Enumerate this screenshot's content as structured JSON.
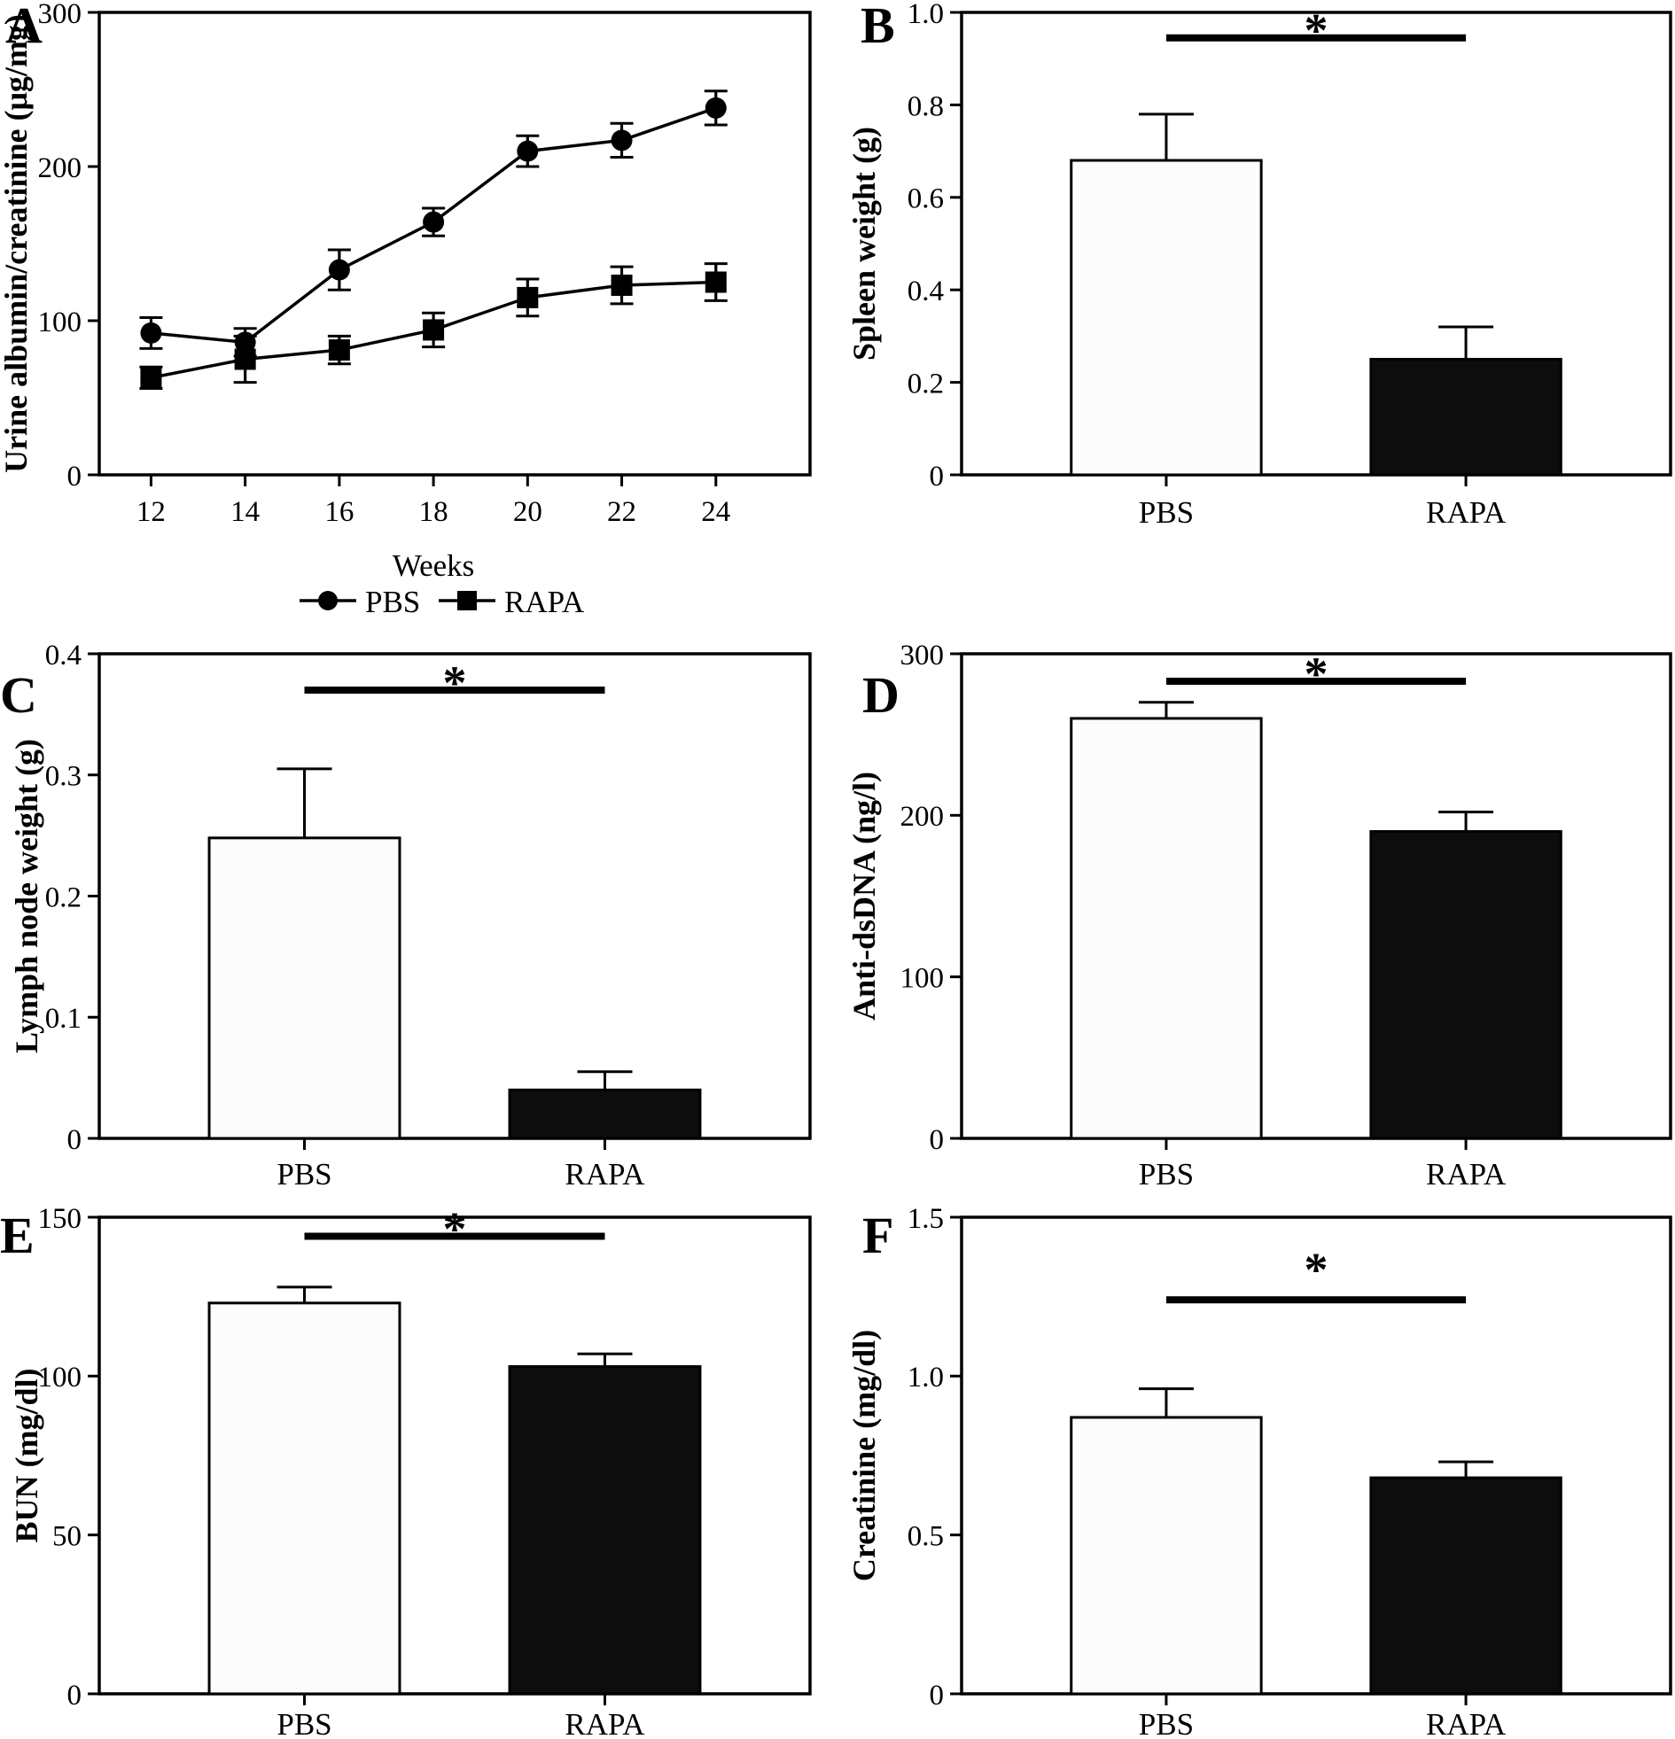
{
  "figure": {
    "groups": [
      "PBS",
      "RAPA"
    ],
    "significance_symbol": "*",
    "colors": {
      "ink": "#000000",
      "pbs_bar_fill": "#fcfcfc",
      "rapa_bar_fill": "#0d0d0d",
      "background": "#ffffff"
    }
  },
  "chart_data": [
    {
      "panel": "A",
      "type": "line",
      "title": "",
      "xlabel": "Weeks",
      "ylabel": "Urine albumin/creatinine (μg/mg)",
      "ylim": [
        0,
        300
      ],
      "yticks": [
        0,
        100,
        200,
        300
      ],
      "ytick_labels": [
        "0",
        "100",
        "200",
        "300"
      ],
      "xlim": [
        10.9,
        26.0
      ],
      "x": [
        12,
        14,
        16,
        18,
        20,
        22,
        24
      ],
      "xtick_labels": [
        "12",
        "14",
        "16",
        "18",
        "20",
        "22",
        "24"
      ],
      "grid": false,
      "legend_position": "bottom",
      "series": [
        {
          "name": "PBS",
          "marker": "circle",
          "color": "#000000",
          "values": [
            92,
            86,
            133,
            164,
            210,
            217,
            238
          ],
          "errors": [
            10,
            9,
            13,
            9,
            10,
            11,
            11
          ]
        },
        {
          "name": "RAPA",
          "marker": "square",
          "color": "#000000",
          "values": [
            63,
            75,
            81,
            94,
            115,
            123,
            125
          ],
          "errors": [
            7,
            15,
            9,
            11,
            12,
            12,
            12
          ]
        }
      ],
      "legend": [
        {
          "label": "PBS",
          "marker": "circle"
        },
        {
          "label": "RAPA",
          "marker": "square"
        }
      ]
    },
    {
      "panel": "B",
      "type": "bar",
      "ylabel": "Spleen weight (g)",
      "ylim": [
        0,
        1.0
      ],
      "yticks": [
        0,
        0.2,
        0.4,
        0.6,
        0.8,
        1.0
      ],
      "ytick_labels": [
        "0",
        "0.2",
        "0.4",
        "0.6",
        "0.8",
        "1.0"
      ],
      "categories": [
        "PBS",
        "RAPA"
      ],
      "values": [
        0.68,
        0.25
      ],
      "errors": [
        0.1,
        0.07
      ],
      "colors": [
        "#fcfcfc",
        "#0d0d0d"
      ],
      "significance": {
        "label": "*",
        "y": 0.945
      }
    },
    {
      "panel": "C",
      "type": "bar",
      "ylabel": "Lymph node weight (g)",
      "ylim": [
        0,
        0.4
      ],
      "yticks": [
        0,
        0.1,
        0.2,
        0.3,
        0.4
      ],
      "ytick_labels": [
        "0",
        "0.1",
        "0.2",
        "0.3",
        "0.4"
      ],
      "categories": [
        "PBS",
        "RAPA"
      ],
      "values": [
        0.248,
        0.04
      ],
      "errors": [
        0.057,
        0.015
      ],
      "colors": [
        "#fcfcfc",
        "#0d0d0d"
      ],
      "significance": {
        "label": "*",
        "y": 0.37
      }
    },
    {
      "panel": "D",
      "type": "bar",
      "ylabel": "Anti-dsDNA (ng/l)",
      "ylim": [
        0,
        300
      ],
      "yticks": [
        0,
        100,
        200,
        300
      ],
      "ytick_labels": [
        "0",
        "100",
        "200",
        "300"
      ],
      "categories": [
        "PBS",
        "RAPA"
      ],
      "values": [
        260,
        190
      ],
      "errors": [
        10,
        12
      ],
      "colors": [
        "#fcfcfc",
        "#0d0d0d"
      ],
      "significance": {
        "label": "*",
        "y": 283
      }
    },
    {
      "panel": "E",
      "type": "bar",
      "ylabel": "BUN (mg/dl)",
      "ylim": [
        0,
        150
      ],
      "yticks": [
        0,
        50,
        100,
        150
      ],
      "ytick_labels": [
        "0",
        "50",
        "100",
        "150"
      ],
      "categories": [
        "PBS",
        "RAPA"
      ],
      "values": [
        123,
        103
      ],
      "errors": [
        5,
        4
      ],
      "colors": [
        "#fcfcfc",
        "#0d0d0d"
      ],
      "significance": {
        "label": "*",
        "y": 144
      }
    },
    {
      "panel": "F",
      "type": "bar",
      "ylabel": "Creatinine (mg/dl)",
      "ylim": [
        0,
        1.5
      ],
      "yticks": [
        0,
        0.5,
        1.0,
        1.5
      ],
      "ytick_labels": [
        "0",
        "0.5",
        "1.0",
        "1.5"
      ],
      "categories": [
        "PBS",
        "RAPA"
      ],
      "values": [
        0.87,
        0.68
      ],
      "errors": [
        0.09,
        0.05
      ],
      "colors": [
        "#fcfcfc",
        "#0d0d0d"
      ],
      "significance": {
        "label": "*",
        "y": 1.24
      }
    }
  ]
}
